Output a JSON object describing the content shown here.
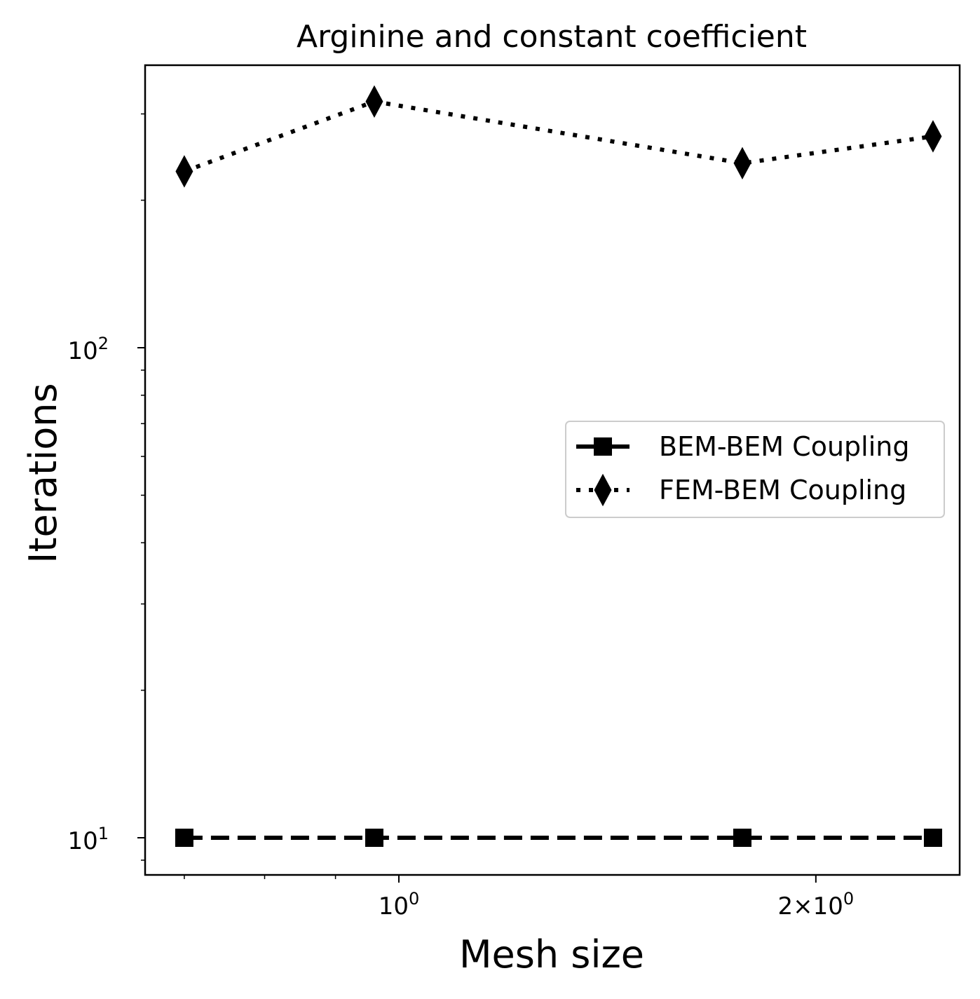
{
  "chart_data": {
    "type": "line",
    "title": "Arginine and constant coefficient",
    "xlabel": "Mesh size",
    "ylabel": "Iterations",
    "x_scale": "log",
    "y_scale": "log",
    "xlim": [
      0.6,
      2.5
    ],
    "ylim": [
      9,
      300
    ],
    "x": [
      0.7,
      0.96,
      1.77,
      2.43
    ],
    "x_ticks": [
      {
        "value": 1,
        "base": "10",
        "exp": "0"
      },
      {
        "value": 2,
        "base": "2×10",
        "exp": "0"
      }
    ],
    "y_ticks": [
      {
        "value": 10,
        "base": "10",
        "exp": "1"
      },
      {
        "value": 100,
        "base": "10",
        "exp": "2"
      }
    ],
    "series": [
      {
        "name": "BEM-BEM Coupling",
        "values": [
          10,
          10,
          10,
          10
        ],
        "marker": "square",
        "linestyle": "dashed",
        "color": "#000000"
      },
      {
        "name": "FEM-BEM Coupling",
        "values": [
          229,
          318,
          238,
          270
        ],
        "marker": "diamond",
        "linestyle": "dotted",
        "color": "#000000"
      }
    ],
    "legend": {
      "position": "center-right"
    },
    "grid": false
  }
}
